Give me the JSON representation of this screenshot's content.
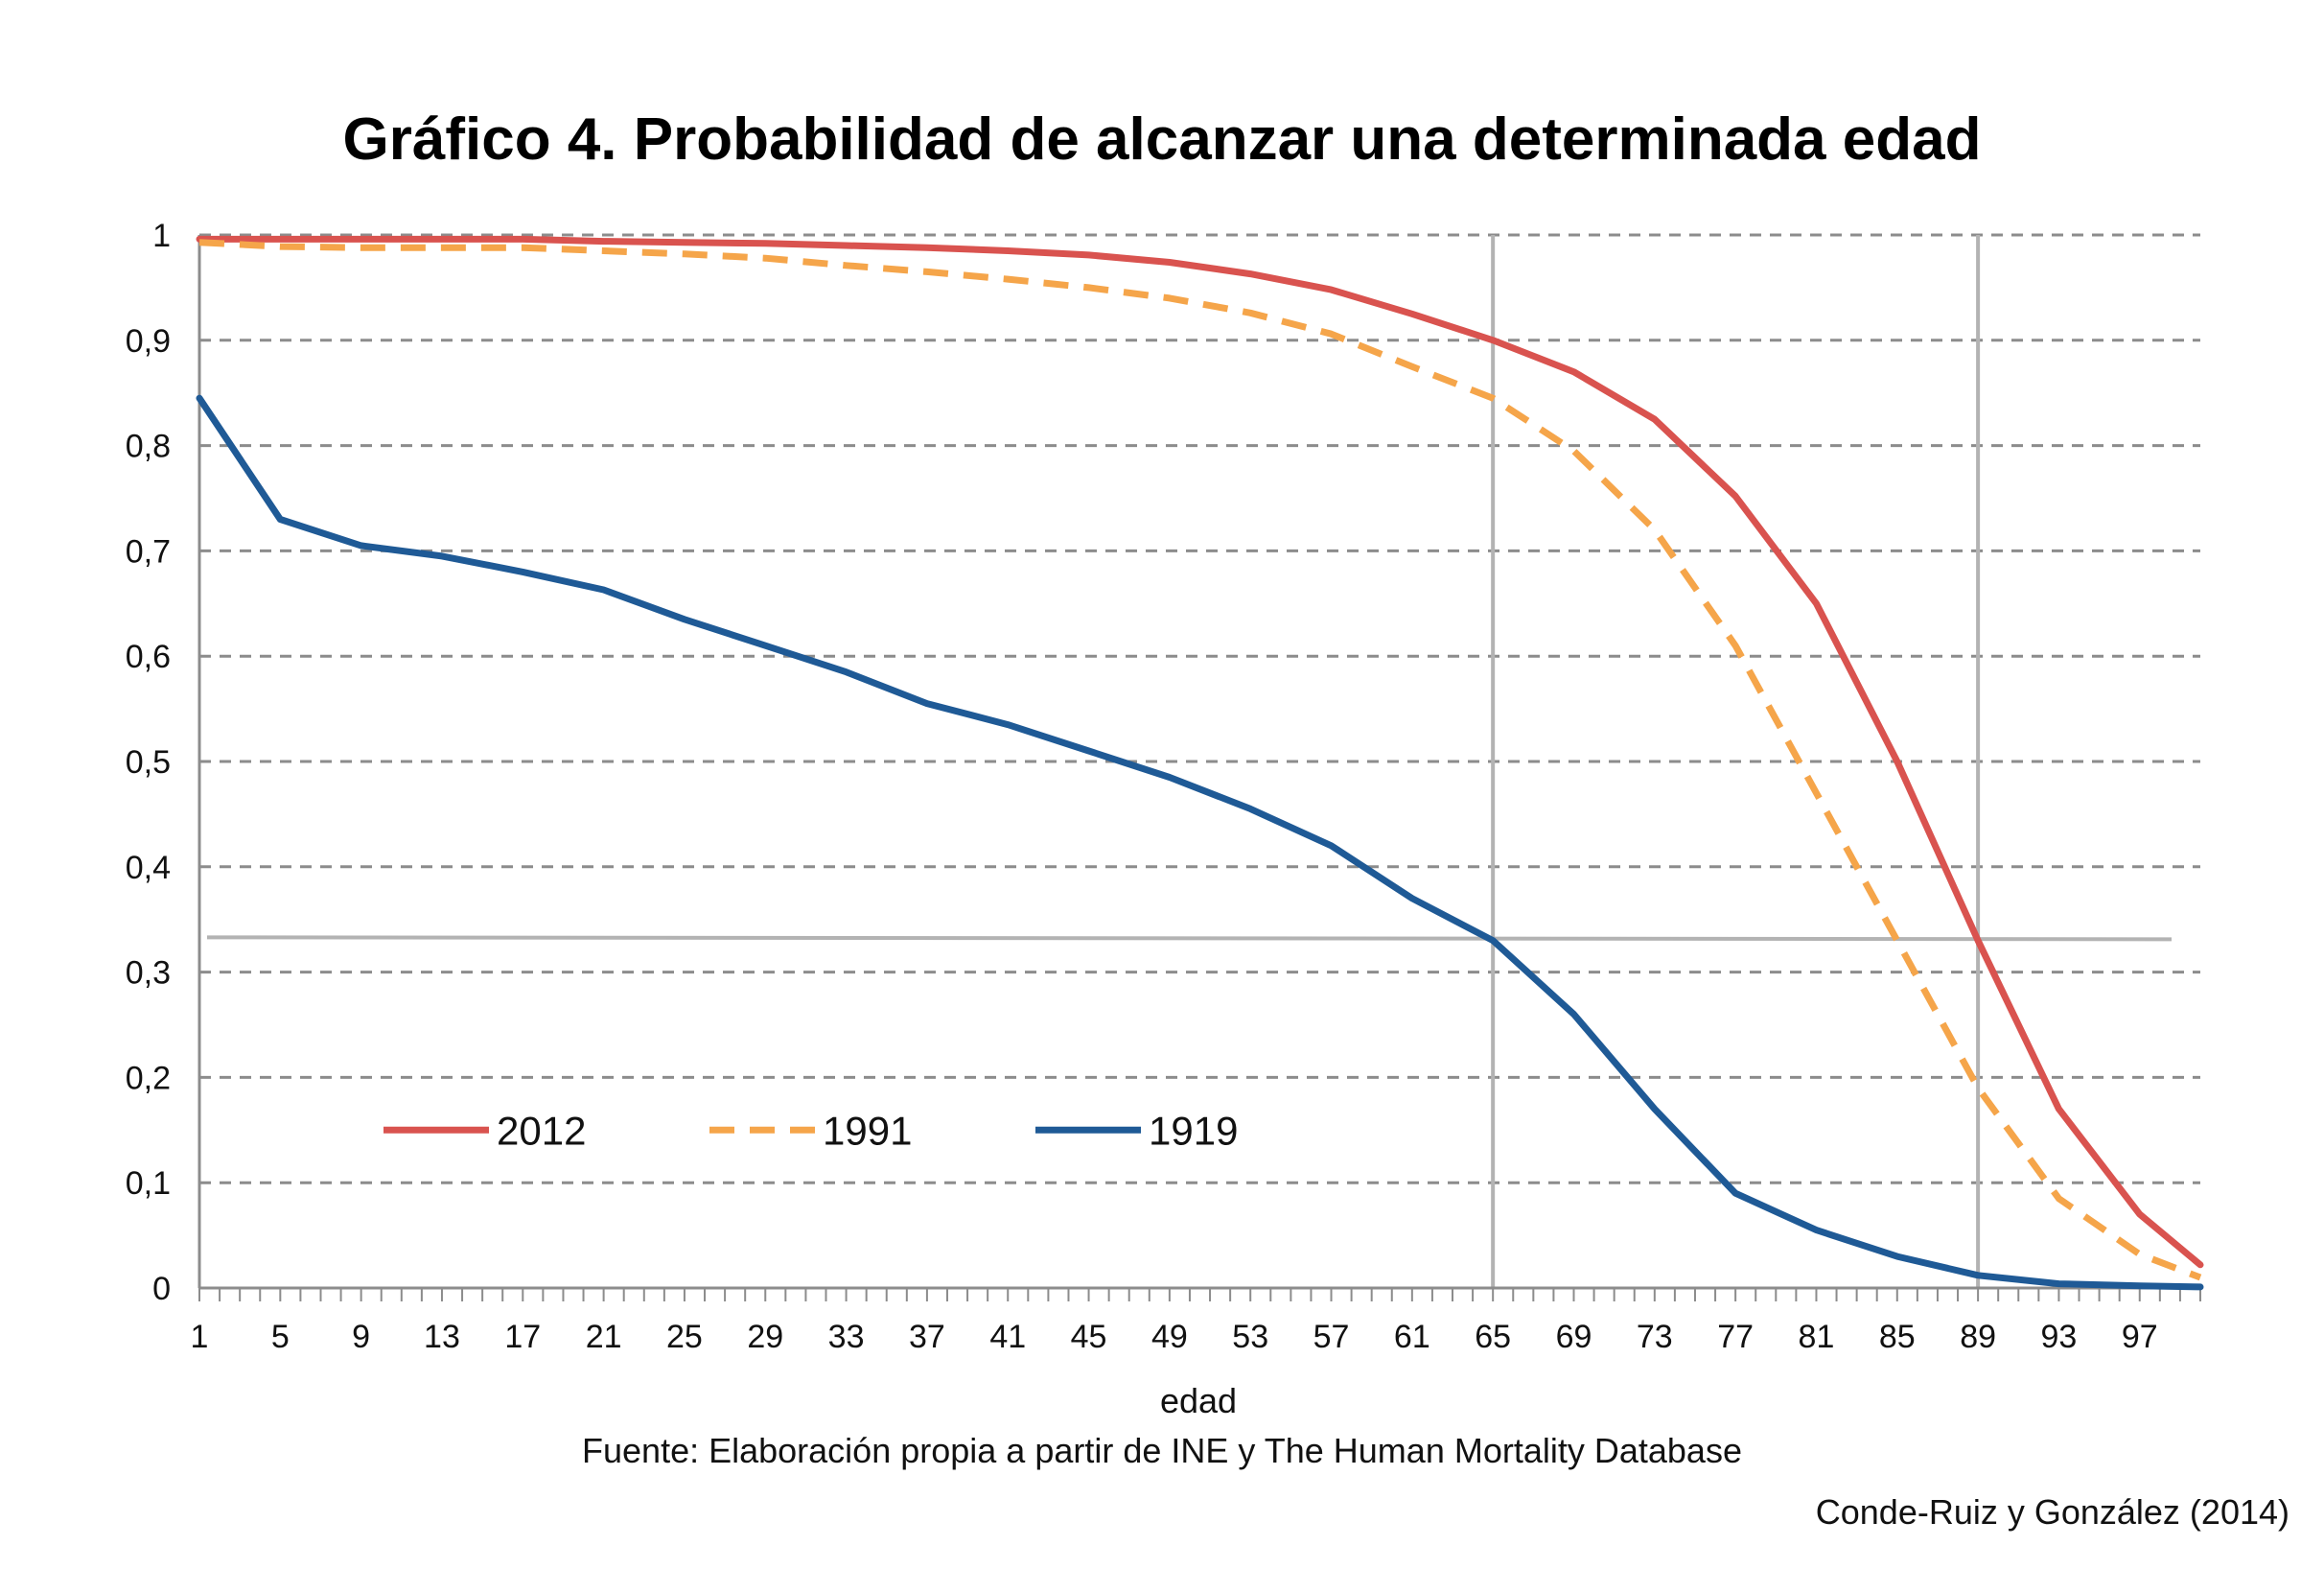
{
  "chart_data": {
    "type": "line",
    "title": "Gráfico 4. Probabilidad de alcanzar una determinada edad",
    "xlabel": "edad",
    "ylabel": "",
    "source": "Fuente:  Elaboración propia a partir de INE y The Human Mortality Database",
    "credit": "Conde-Ruiz y González (2014)",
    "ylim": [
      0,
      1
    ],
    "yticks": [
      0,
      0.1,
      0.2,
      0.3,
      0.4,
      0.5,
      0.6,
      0.7,
      0.8,
      0.9,
      1
    ],
    "ytick_labels": [
      "0",
      "0,1",
      "0,2",
      "0,3",
      "0,4",
      "0,5",
      "0,6",
      "0,7",
      "0,8",
      "0,9",
      "1"
    ],
    "xlim": [
      1,
      100
    ],
    "xticks": [
      1,
      5,
      9,
      13,
      17,
      21,
      25,
      29,
      33,
      37,
      41,
      45,
      49,
      53,
      57,
      61,
      65,
      69,
      73,
      77,
      81,
      85,
      89,
      93,
      97
    ],
    "grid": "horizontal-dashed",
    "legend_position": "lower-left",
    "reference_lines": {
      "vertical": [
        65,
        89
      ],
      "horizontal": 0.333
    },
    "x": [
      1,
      5,
      9,
      13,
      17,
      21,
      25,
      29,
      33,
      37,
      41,
      45,
      49,
      53,
      57,
      61,
      65,
      69,
      73,
      77,
      81,
      85,
      89,
      93,
      97,
      100
    ],
    "series": [
      {
        "name": "2012",
        "color": "#d9534f",
        "style": "solid",
        "values": [
          0.996,
          0.996,
          0.996,
          0.996,
          0.996,
          0.994,
          0.993,
          0.992,
          0.99,
          0.988,
          0.985,
          0.981,
          0.974,
          0.963,
          0.948,
          0.925,
          0.9,
          0.87,
          0.825,
          0.752,
          0.65,
          0.5,
          0.33,
          0.17,
          0.07,
          0.022
        ]
      },
      {
        "name": "1991",
        "color": "#f5a54a",
        "style": "dashed",
        "values": [
          0.993,
          0.989,
          0.988,
          0.988,
          0.988,
          0.985,
          0.982,
          0.978,
          0.971,
          0.965,
          0.958,
          0.95,
          0.94,
          0.926,
          0.906,
          0.875,
          0.845,
          0.795,
          0.72,
          0.61,
          0.47,
          0.33,
          0.19,
          0.085,
          0.032,
          0.01
        ]
      },
      {
        "name": "1919",
        "color": "#1f5a96",
        "style": "solid",
        "values": [
          0.845,
          0.73,
          0.705,
          0.695,
          0.68,
          0.663,
          0.635,
          0.61,
          0.585,
          0.555,
          0.535,
          0.51,
          0.485,
          0.455,
          0.42,
          0.37,
          0.33,
          0.26,
          0.17,
          0.09,
          0.055,
          0.03,
          0.012,
          0.004,
          0.002,
          0.001
        ]
      }
    ]
  }
}
